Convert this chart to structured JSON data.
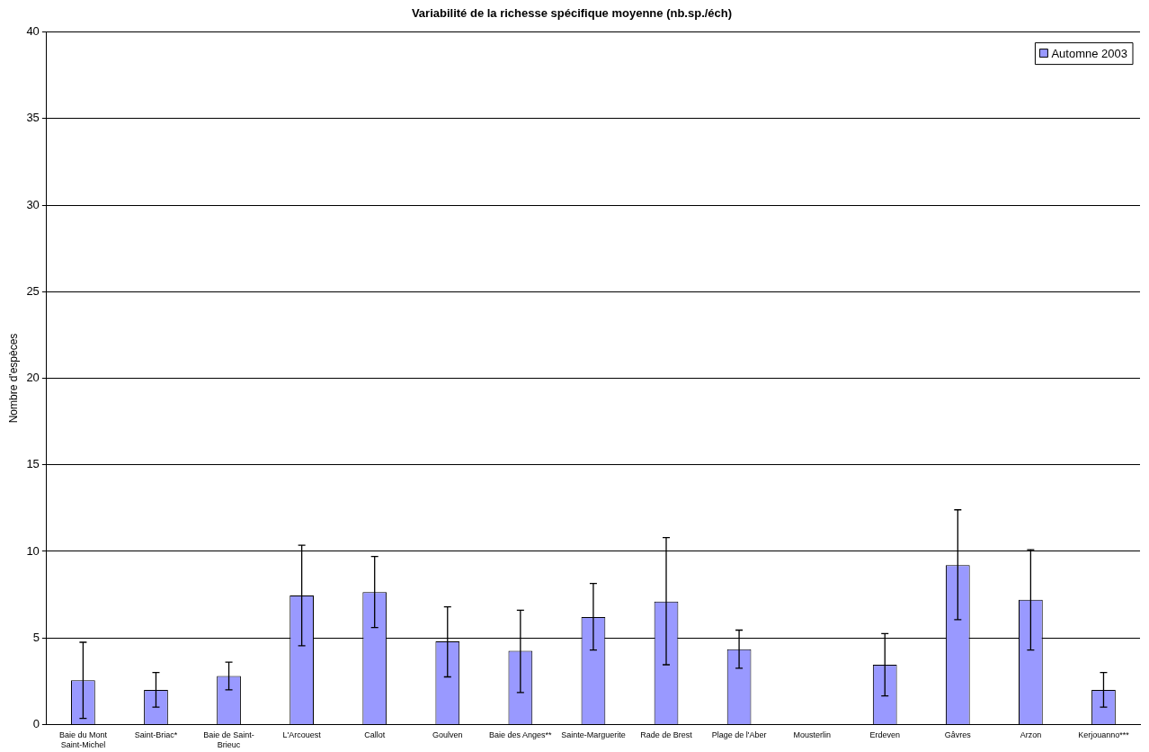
{
  "chart_data": {
    "type": "bar",
    "title": "Variabilité de la richesse spécifique moyenne (nb.sp./éch)",
    "ylabel": "Nombre d'espèces",
    "categories": [
      "Baie du Mont Saint-Michel",
      "Saint-Briac*",
      "Baie de Saint-Brieuc",
      "L'Arcouest",
      "Callot",
      "Goulven",
      "Baie des Anges**",
      "Sainte-Marguerite",
      "Rade de Brest",
      "Plage de l'Aber",
      "Mousterlin",
      "Erdeven",
      "Gâvres",
      "Arzon",
      "Kerjouanno***"
    ],
    "series": [
      {
        "name": "Automne 2003",
        "color": "#9999ff",
        "values": [
          2.55,
          2.0,
          2.8,
          7.45,
          7.65,
          4.8,
          4.25,
          6.2,
          7.1,
          4.35,
          null,
          3.45,
          9.2,
          7.2,
          2.0
        ],
        "errors": [
          [
            0.35,
            4.75
          ],
          [
            1.0,
            3.0
          ],
          [
            2.0,
            3.6
          ],
          [
            4.55,
            10.35
          ],
          [
            5.6,
            9.7
          ],
          [
            2.75,
            6.8
          ],
          [
            1.85,
            6.6
          ],
          [
            4.3,
            8.15
          ],
          [
            3.45,
            10.8
          ],
          [
            3.25,
            5.45
          ],
          null,
          [
            1.65,
            5.25
          ],
          [
            6.05,
            12.4
          ],
          [
            4.3,
            10.1
          ],
          [
            1.0,
            3.0
          ]
        ]
      }
    ],
    "ylim": [
      0,
      40
    ],
    "yticks": [
      0,
      5,
      10,
      15,
      20,
      25,
      30,
      35,
      40
    ],
    "grid": "y",
    "legend": "top right"
  }
}
